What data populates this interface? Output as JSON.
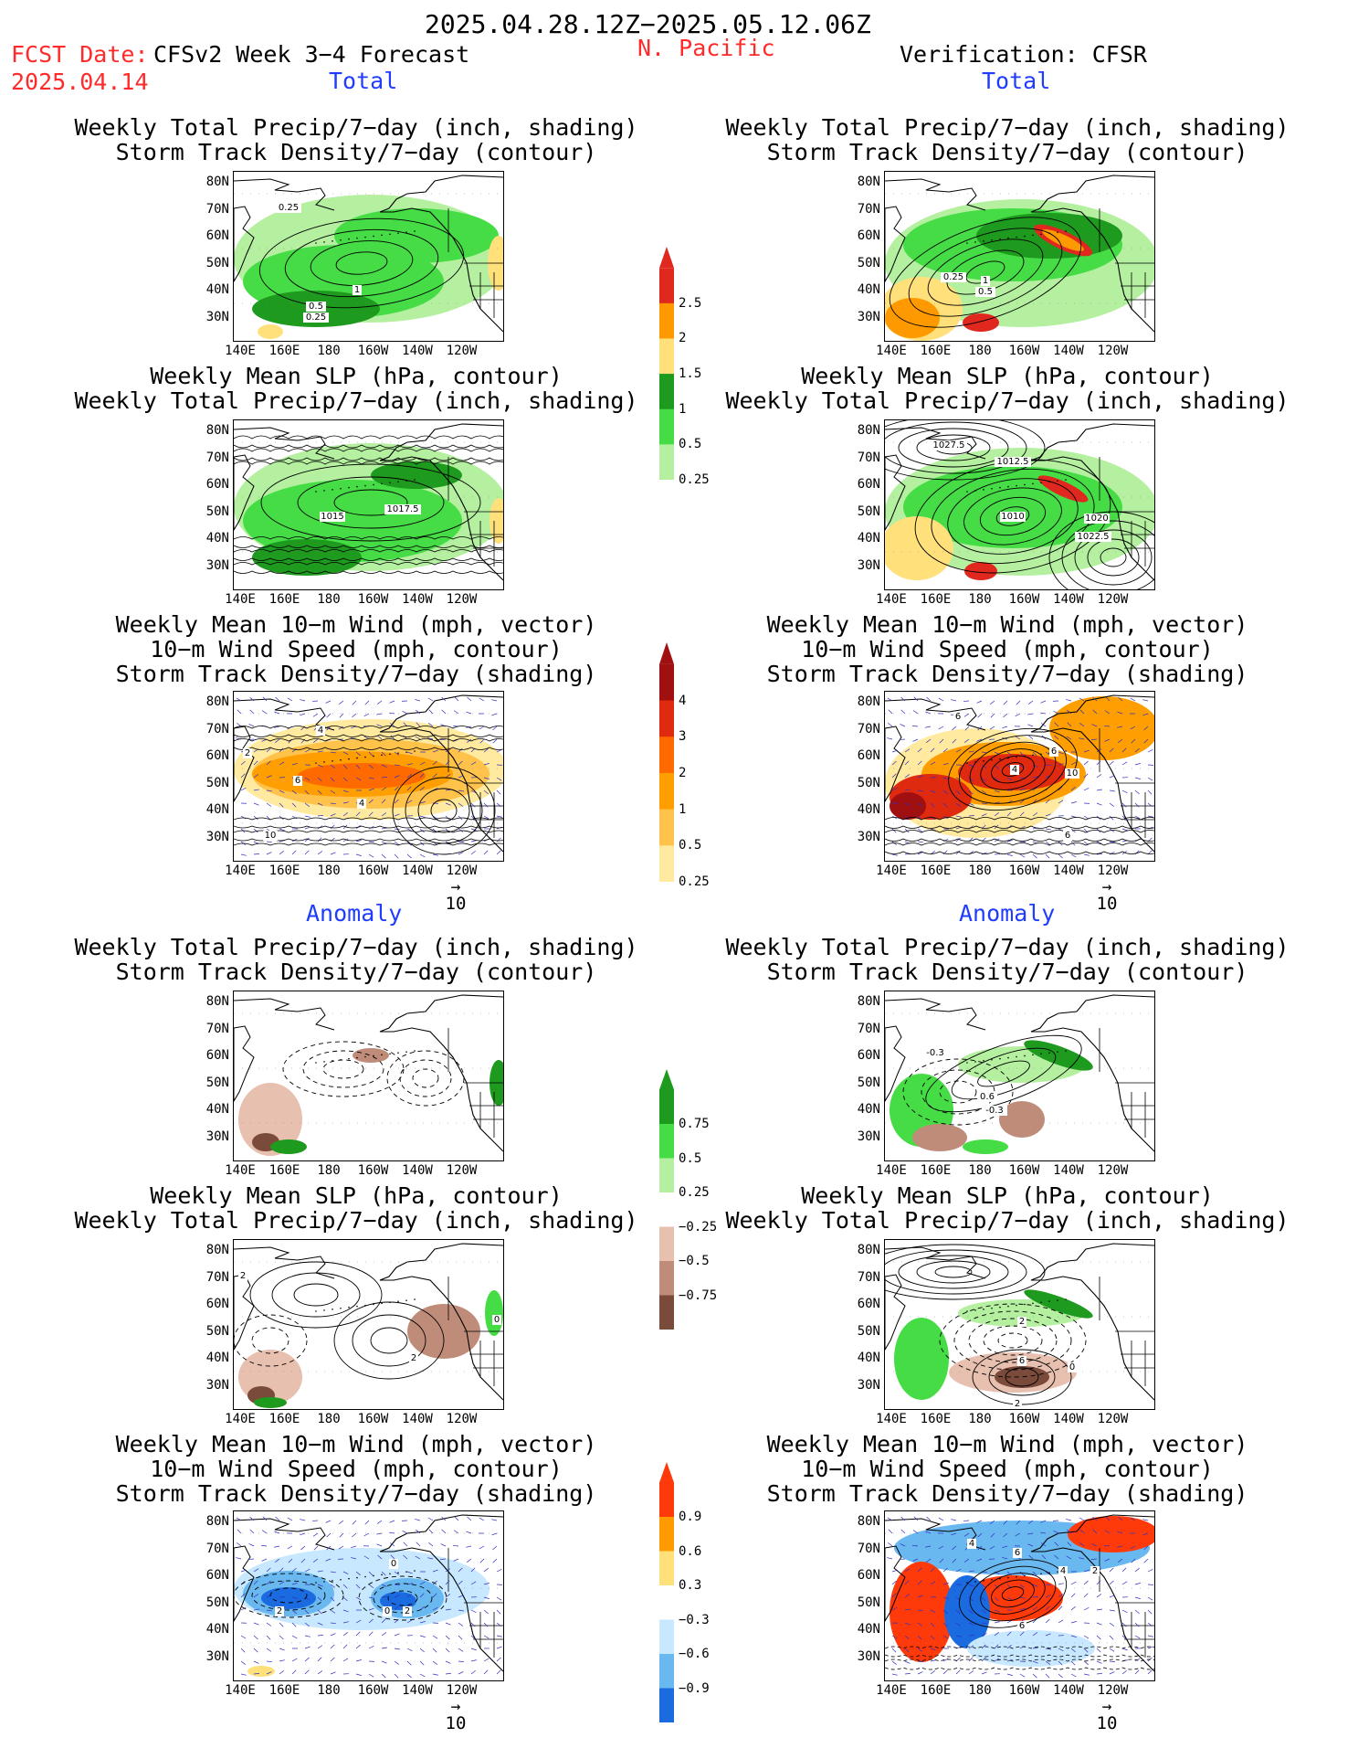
{
  "header": {
    "period": "2025.04.28.12Z−2025.05.12.06Z",
    "fcst_label": "FCST Date:",
    "fcst_date": "2025.04.14",
    "model": "CFSv2 Week 3−4 Forecast",
    "region": "N. Pacific",
    "verification": "Verification: CFSR"
  },
  "sections": {
    "total": "Total",
    "anomaly": "Anomaly"
  },
  "titles": {
    "precip": [
      "Weekly Total Precip/7−day (inch, shading)",
      "Storm Track Density/7−day (contour)"
    ],
    "slp": [
      "Weekly Mean SLP (hPa, contour)",
      "Weekly Total Precip/7−day (inch, shading)"
    ],
    "wind": [
      "Weekly Mean 10−m Wind (mph, vector)",
      "10−m Wind Speed (mph, contour)",
      "Storm Track Density/7−day (shading)"
    ]
  },
  "axes": {
    "y": [
      "80N",
      "70N",
      "60N",
      "50N",
      "40N",
      "30N"
    ],
    "x": [
      "140E",
      "160E",
      "180",
      "160W",
      "140W",
      "120W"
    ]
  },
  "vector_ref": "10",
  "colorbars": {
    "precip_total": {
      "labels": [
        "2.5",
        "2",
        "1.5",
        "1",
        "0.5",
        "0.25"
      ],
      "colors": [
        "#e0281e",
        "#ff9900",
        "#ffe07a",
        "#1e9a1e",
        "#46dc46",
        "#b4f0a0"
      ]
    },
    "std_total": {
      "labels": [
        "4",
        "3",
        "2",
        "1",
        "0.5",
        "0.25"
      ],
      "colors": [
        "#a01010",
        "#e02a10",
        "#ff6a00",
        "#ff9e00",
        "#ffc24a",
        "#ffeaa0"
      ]
    },
    "precip_anom": {
      "labels": [
        "0.75",
        "0.5",
        "0.25",
        "−0.25",
        "−0.5",
        "−0.75"
      ],
      "colors": [
        "#1e9a1e",
        "#46dc46",
        "#b4f0a0",
        "#ffffff",
        "#e8c0b0",
        "#c08c7a",
        "#7a4a3a"
      ]
    },
    "std_anom": {
      "labels": [
        "0.9",
        "0.6",
        "0.3",
        "−0.3",
        "−0.6",
        "−0.9"
      ],
      "colors": [
        "#ff3a0a",
        "#ff9a00",
        "#ffe07a",
        "#ffffff",
        "#c8e8ff",
        "#6ab8f0",
        "#1a6ae0"
      ]
    }
  },
  "map_labels": {
    "f_precip_total": [
      "0.25",
      "1",
      "0.5",
      "0.25"
    ],
    "v_precip_total": [
      "0.25",
      "1",
      "0.5"
    ],
    "f_slp_total": [
      "1015",
      "1017.5"
    ],
    "v_slp_total": [
      "1027.5",
      "1012.5",
      "1010",
      "1020",
      "1022.5"
    ],
    "f_wind_total": [
      "4",
      "6",
      "4",
      "10",
      "2"
    ],
    "v_wind_total": [
      "6",
      "4",
      "6",
      "10",
      "6"
    ],
    "f_precip_anom": [],
    "v_precip_anom": [
      "-0.3",
      "0.6",
      "-0.3"
    ],
    "f_slp_anom": [
      "2",
      "2",
      "0"
    ],
    "v_slp_anom": [
      "2",
      "6",
      "0",
      "2"
    ],
    "f_wind_anom": [
      "2",
      "0",
      "2",
      "0"
    ],
    "v_wind_anom": [
      "4",
      "6",
      "4",
      "2",
      "6"
    ]
  }
}
